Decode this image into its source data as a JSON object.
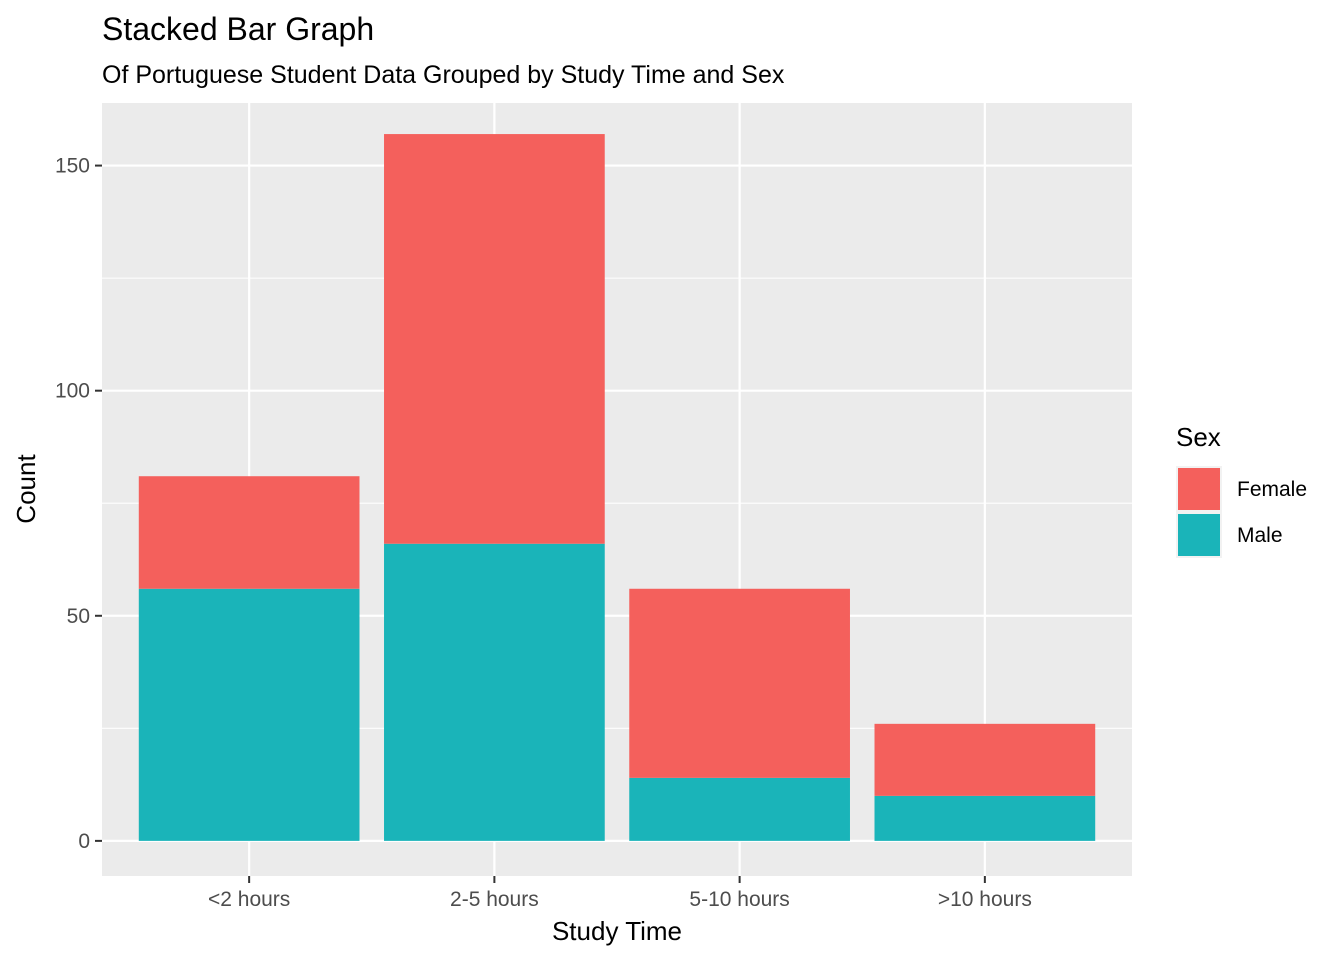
{
  "chart_data": {
    "type": "bar",
    "stacked": true,
    "title": "Stacked Bar Graph",
    "subtitle": "Of Portuguese Student Data Grouped by Study Time and Sex",
    "xlabel": "Study Time",
    "ylabel": "Count",
    "categories": [
      "<2 hours",
      "2-5 hours",
      "5-10 hours",
      ">10 hours"
    ],
    "series": [
      {
        "name": "Female",
        "color": "#F4605C",
        "values": [
          25,
          91,
          42,
          16
        ]
      },
      {
        "name": "Male",
        "color": "#1AB4B9",
        "values": [
          56,
          66,
          14,
          10
        ]
      }
    ],
    "ylim": [
      -7.8,
      163.9
    ],
    "yticks": [
      0,
      50,
      100,
      150
    ],
    "ytick_labels": [
      "0",
      "50",
      "100",
      "150"
    ],
    "grid": true,
    "legend": {
      "title": "Sex",
      "position": "right"
    }
  }
}
